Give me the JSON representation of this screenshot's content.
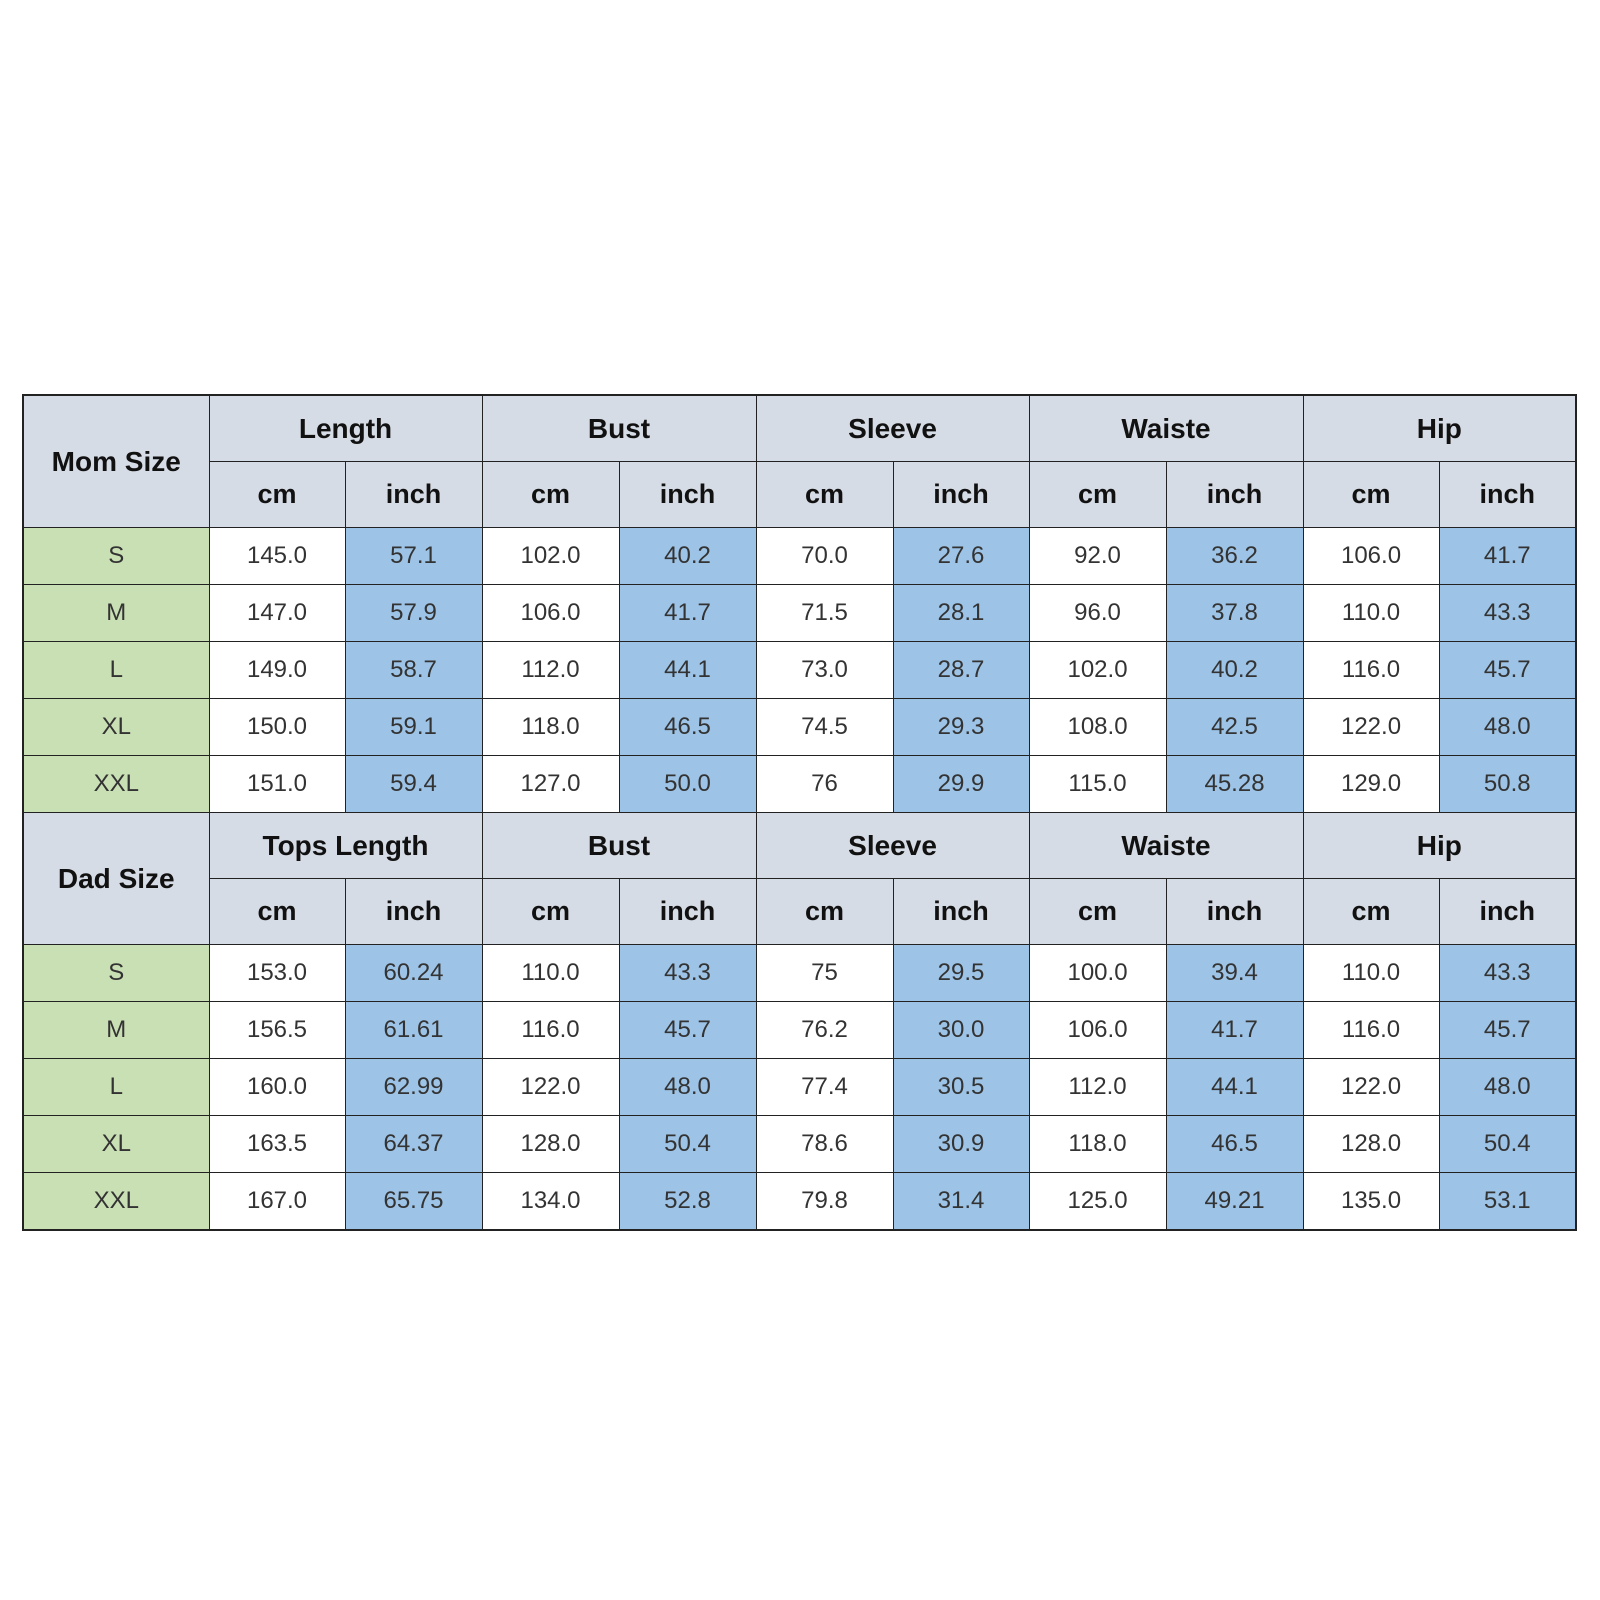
{
  "colors": {
    "header_bg": "#d6dce5",
    "size_bg": "#c9e0b4",
    "cm_bg": "#ffffff",
    "inch_bg": "#9dc3e6",
    "border": "#222222"
  },
  "sections": [
    {
      "label": "Mom Size",
      "groups": [
        "Length",
        "Bust",
        "Sleeve",
        "Waiste",
        "Hip"
      ],
      "units": [
        "cm",
        "inch",
        "cm",
        "inch",
        "cm",
        "inch",
        "cm",
        "inch",
        "cm",
        "inch"
      ],
      "rows": [
        {
          "size": "S",
          "values": [
            "145.0",
            "57.1",
            "102.0",
            "40.2",
            "70.0",
            "27.6",
            "92.0",
            "36.2",
            "106.0",
            "41.7"
          ]
        },
        {
          "size": "M",
          "values": [
            "147.0",
            "57.9",
            "106.0",
            "41.7",
            "71.5",
            "28.1",
            "96.0",
            "37.8",
            "110.0",
            "43.3"
          ]
        },
        {
          "size": "L",
          "values": [
            "149.0",
            "58.7",
            "112.0",
            "44.1",
            "73.0",
            "28.7",
            "102.0",
            "40.2",
            "116.0",
            "45.7"
          ]
        },
        {
          "size": "XL",
          "values": [
            "150.0",
            "59.1",
            "118.0",
            "46.5",
            "74.5",
            "29.3",
            "108.0",
            "42.5",
            "122.0",
            "48.0"
          ]
        },
        {
          "size": "XXL",
          "values": [
            "151.0",
            "59.4",
            "127.0",
            "50.0",
            "76",
            "29.9",
            "115.0",
            "45.28",
            "129.0",
            "50.8"
          ]
        }
      ]
    },
    {
      "label": "Dad Size",
      "groups": [
        "Tops Length",
        "Bust",
        "Sleeve",
        "Waiste",
        "Hip"
      ],
      "units": [
        "cm",
        "inch",
        "cm",
        "inch",
        "cm",
        "inch",
        "cm",
        "inch",
        "cm",
        "inch"
      ],
      "rows": [
        {
          "size": "S",
          "values": [
            "153.0",
            "60.24",
            "110.0",
            "43.3",
            "75",
            "29.5",
            "100.0",
            "39.4",
            "110.0",
            "43.3"
          ]
        },
        {
          "size": "M",
          "values": [
            "156.5",
            "61.61",
            "116.0",
            "45.7",
            "76.2",
            "30.0",
            "106.0",
            "41.7",
            "116.0",
            "45.7"
          ]
        },
        {
          "size": "L",
          "values": [
            "160.0",
            "62.99",
            "122.0",
            "48.0",
            "77.4",
            "30.5",
            "112.0",
            "44.1",
            "122.0",
            "48.0"
          ]
        },
        {
          "size": "XL",
          "values": [
            "163.5",
            "64.37",
            "128.0",
            "50.4",
            "78.6",
            "30.9",
            "118.0",
            "46.5",
            "128.0",
            "50.4"
          ]
        },
        {
          "size": "XXL",
          "values": [
            "167.0",
            "65.75",
            "134.0",
            "52.8",
            "79.8",
            "31.4",
            "125.0",
            "49.21",
            "135.0",
            "53.1"
          ]
        }
      ]
    }
  ]
}
